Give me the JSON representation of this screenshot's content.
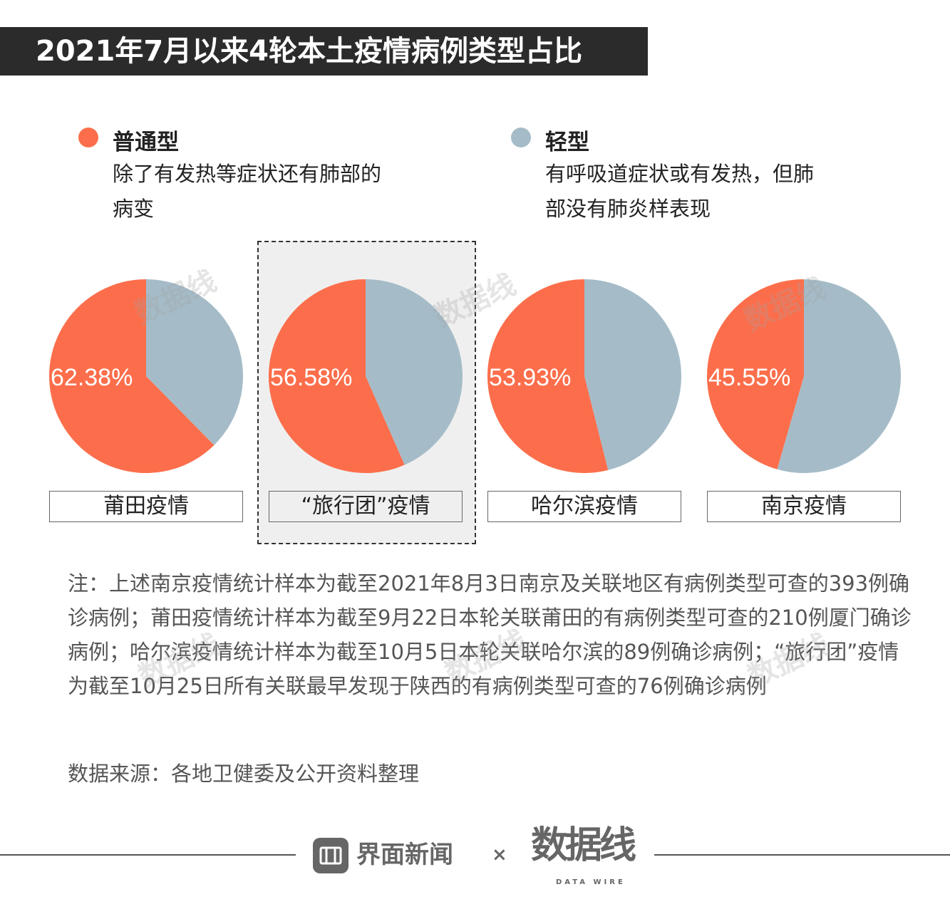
{
  "title": "2021年7月以来4轮本土疫情病例类型占比",
  "legend": [
    {
      "name": "普通型",
      "desc_line1": "除了有发热等症状还有肺部的",
      "desc_line2": "病变",
      "color": "#fc6e4b"
    },
    {
      "name": "轻型",
      "desc_line1": "有呼吸道症状或有发热，但肺",
      "desc_line2": "部没有肺炎样表现",
      "color": "#a5bcc8"
    }
  ],
  "chart_data": {
    "type": "pie",
    "categories": [
      "普通型",
      "轻型"
    ],
    "colors": [
      "#fc6e4b",
      "#a5bcc8"
    ],
    "pies": [
      {
        "label": "莆田疫情",
        "values": [
          62.38,
          37.62
        ],
        "value_label": "62.38%",
        "highlighted": false
      },
      {
        "label": "“旅行团”疫情",
        "values": [
          56.58,
          43.42
        ],
        "value_label": "56.58%",
        "highlighted": true
      },
      {
        "label": "哈尔滨疫情",
        "values": [
          53.93,
          46.07
        ],
        "value_label": "53.93%",
        "highlighted": false
      },
      {
        "label": "南京疫情",
        "values": [
          45.55,
          54.45
        ],
        "value_label": "45.55%",
        "highlighted": false
      }
    ]
  },
  "note": "注：上述南京疫情统计样本为截至2021年8月3日南京及关联地区有病例类型可查的393例确诊病例；莆田疫情统计样本为截至9月22日本轮关联莆田的有病例类型可查的210例厦门确诊病例；哈尔滨疫情统计样本为截至10月5日本轮关联哈尔滨的89例确诊病例；“旅行团”疫情为截至10月25日所有关联最早发现于陕西的有病例类型可查的76例确诊病例",
  "source": "数据来源：各地卫健委及公开资料整理",
  "footer": {
    "brand1": "界面新闻",
    "times": "×",
    "brand2": "数据线",
    "brand2_sub": "DATA WIRE"
  }
}
